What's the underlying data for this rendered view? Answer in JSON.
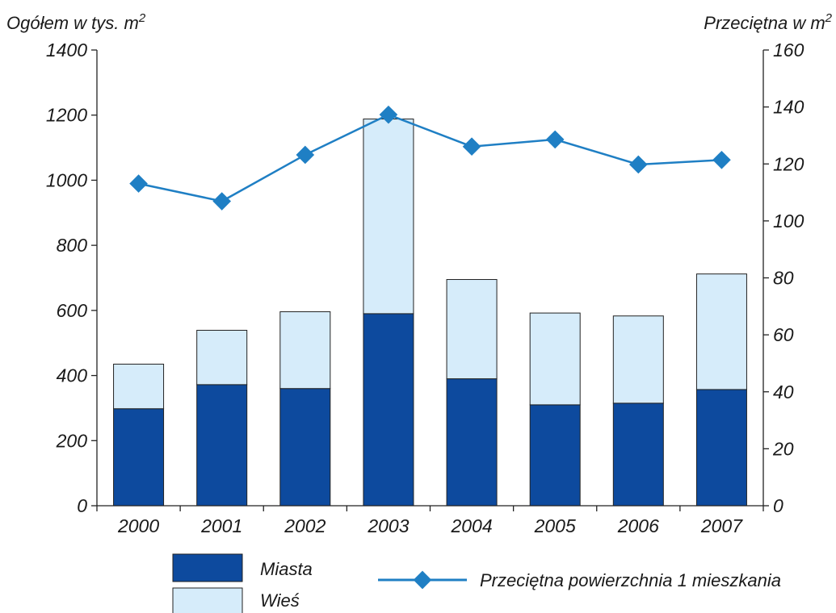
{
  "chart_data": {
    "type": "bar",
    "stacked": true,
    "categories": [
      "2000",
      "2001",
      "2002",
      "2003",
      "2004",
      "2005",
      "2006",
      "2007"
    ],
    "series": [
      {
        "name": "Miasta",
        "values": [
          298,
          372,
          360,
          590,
          390,
          310,
          315,
          357
        ],
        "color": "#0d4a9e"
      },
      {
        "name": "Wieś",
        "values": [
          137,
          167,
          236,
          598,
          305,
          282,
          268,
          355
        ],
        "color": "#d6ecfa"
      }
    ],
    "line_series": {
      "name": "Przeciętna powierzchnia 1 mieszkania",
      "values": [
        113.1,
        106.9,
        123.2,
        137.3,
        126.1,
        128.6,
        119.8,
        121.4
      ],
      "color": "#1f7fc4",
      "axis": "right"
    },
    "ylabel_left_text": "Ogółem w tys. m",
    "ylabel_left_sup": "2",
    "ylabel_right_text": "Przeciętna w m",
    "ylabel_right_sup": "2",
    "ylim_left": [
      0,
      1400
    ],
    "yticks_left": [
      "0",
      "200",
      "400",
      "600",
      "800",
      "1000",
      "1200",
      "1400"
    ],
    "ylim_right": [
      0,
      160
    ],
    "yticks_right": [
      "0",
      "20",
      "40",
      "60",
      "80",
      "100",
      "120",
      "140",
      "160"
    ],
    "grid": false,
    "legend_position": "bottom"
  }
}
